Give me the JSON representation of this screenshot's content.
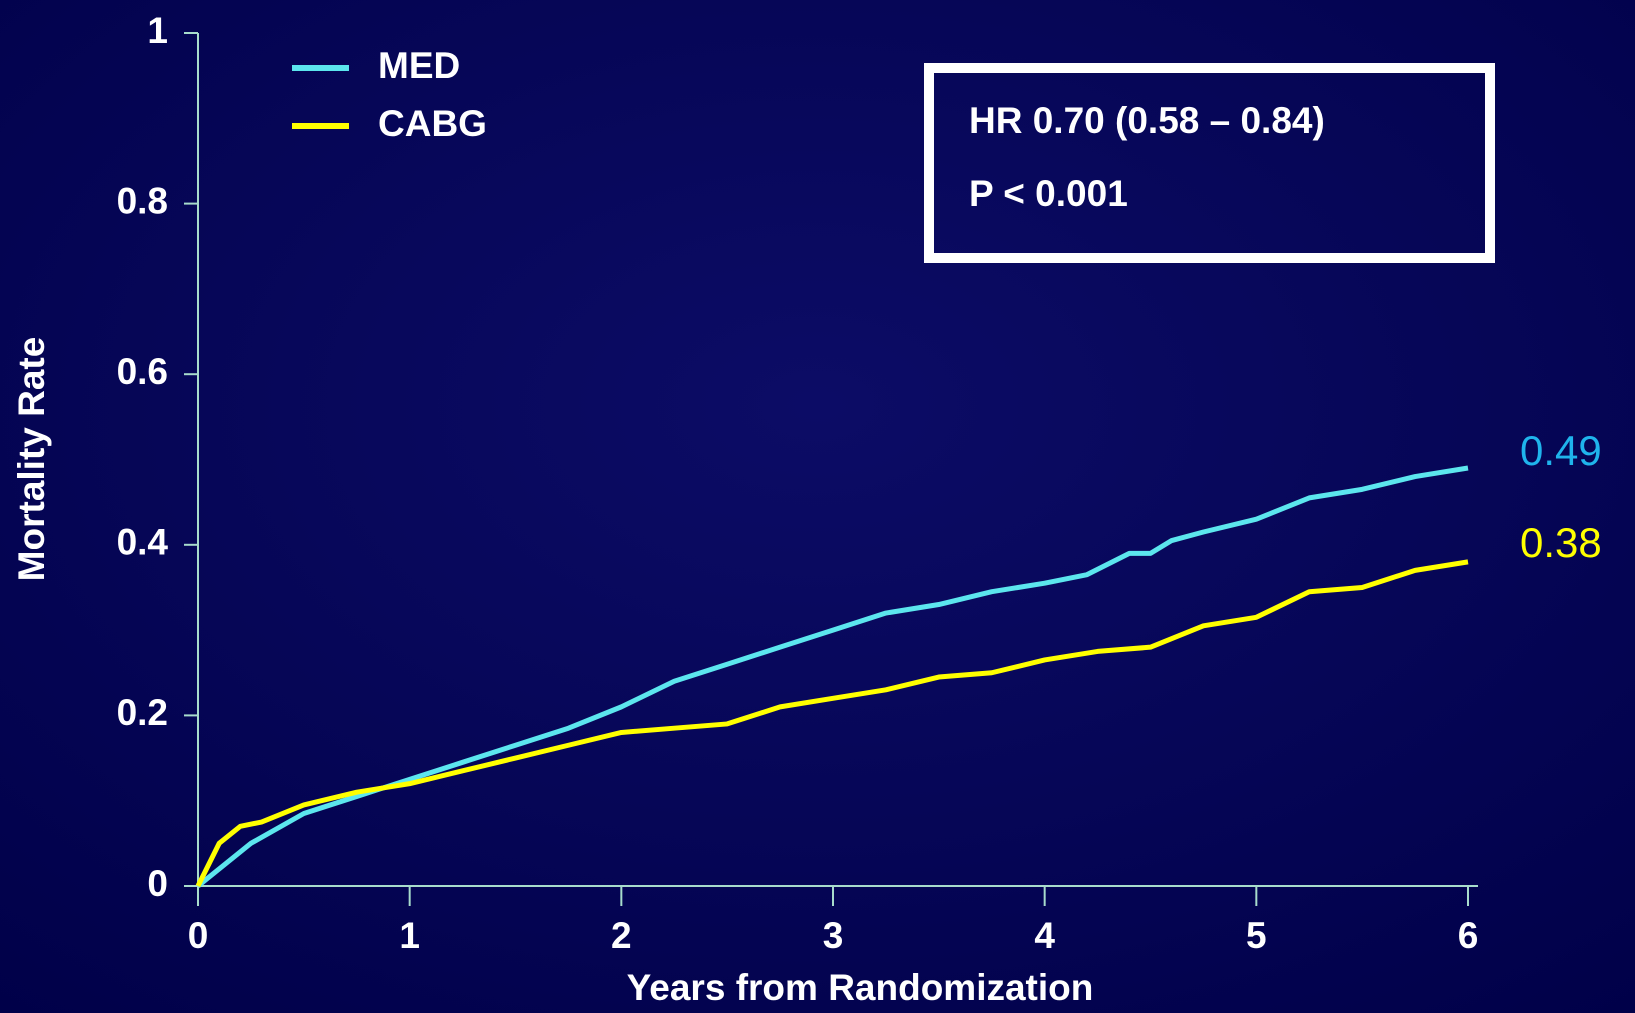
{
  "chart_data": {
    "type": "line",
    "x_label": "Years from Randomization",
    "y_label": "Mortality Rate",
    "xlim": [
      0,
      6
    ],
    "xticks": [
      0,
      1,
      2,
      3,
      4,
      5,
      6
    ],
    "ylim": [
      0,
      1
    ],
    "yticks": [
      0,
      0.2,
      0.4,
      0.6,
      0.8,
      1
    ],
    "legend": "top-left",
    "series": [
      {
        "name": "MED",
        "color": "#5ce6ee",
        "x": [
          0,
          0.1,
          0.25,
          0.5,
          0.75,
          1,
          1.25,
          1.5,
          1.75,
          2,
          2.25,
          2.5,
          2.75,
          3,
          3.25,
          3.5,
          3.75,
          4,
          4.2,
          4.4,
          4.5,
          4.6,
          4.75,
          5,
          5.25,
          5.5,
          5.75,
          6
        ],
        "values": [
          0,
          0.02,
          0.05,
          0.085,
          0.105,
          0.125,
          0.145,
          0.165,
          0.185,
          0.21,
          0.24,
          0.26,
          0.28,
          0.3,
          0.32,
          0.33,
          0.345,
          0.355,
          0.365,
          0.39,
          0.39,
          0.405,
          0.415,
          0.43,
          0.455,
          0.465,
          0.48,
          0.49
        ]
      },
      {
        "name": "CABG",
        "color": "#ffff00",
        "x": [
          0,
          0.1,
          0.2,
          0.3,
          0.5,
          0.75,
          1,
          1.25,
          1.5,
          1.75,
          2,
          2.25,
          2.5,
          2.75,
          3,
          3.25,
          3.5,
          3.75,
          4,
          4.25,
          4.5,
          4.75,
          5,
          5.25,
          5.5,
          5.75,
          6
        ],
        "values": [
          0,
          0.05,
          0.07,
          0.075,
          0.095,
          0.11,
          0.12,
          0.135,
          0.15,
          0.165,
          0.18,
          0.185,
          0.19,
          0.21,
          0.22,
          0.23,
          0.245,
          0.25,
          0.265,
          0.275,
          0.28,
          0.305,
          0.315,
          0.345,
          0.35,
          0.37,
          0.38
        ]
      }
    ],
    "annotations": [
      {
        "text": "HR 0.70 (0.58 – 0.84)"
      },
      {
        "text": "P < 0.001"
      },
      {
        "text": "0.49",
        "color": "#1fb4ec"
      },
      {
        "text": "0.38",
        "color": "#ffff00"
      }
    ]
  }
}
